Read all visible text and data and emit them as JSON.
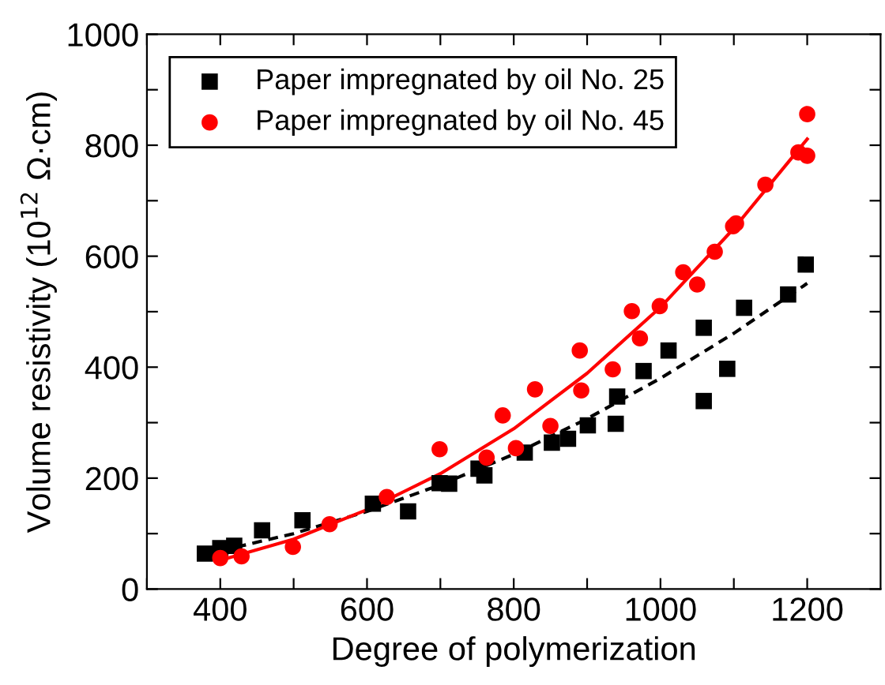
{
  "chart_data": {
    "type": "scatter",
    "xlabel": "Degree of polymerization",
    "ylabel": "Volume resistivity (10$^{12}$ Ω·cm)",
    "xlim": [
      300,
      1300
    ],
    "ylim": [
      0,
      1000
    ],
    "xticks": [
      {
        "value": 300,
        "label": null
      },
      400,
      {
        "value": 500,
        "label": null
      },
      600,
      {
        "value": 700,
        "label": null
      },
      800,
      {
        "value": 900,
        "label": null
      },
      1000,
      {
        "value": 1100,
        "label": null
      },
      1200
    ],
    "yticks": [
      0,
      {
        "value": 100,
        "label": null
      },
      200,
      {
        "value": 300,
        "label": null
      },
      400,
      {
        "value": 500,
        "label": null
      },
      600,
      {
        "value": 700,
        "label": null
      },
      800,
      {
        "value": 900,
        "label": null
      },
      1000
    ],
    "legend": "top left",
    "grid": false,
    "series": [
      {
        "name": "Paper impregnated by oil No. 25",
        "color": "#000000",
        "marker": "square",
        "x": [
          379,
          400,
          419,
          457,
          512,
          608,
          656,
          699,
          712,
          752,
          760,
          815,
          852,
          874,
          901,
          939,
          941,
          977,
          1011,
          1059,
          1059,
          1091,
          1114,
          1174,
          1198
        ],
        "values": [
          64,
          74,
          78,
          106,
          124,
          154,
          140,
          191,
          190,
          217,
          205,
          246,
          264,
          271,
          295,
          298,
          347,
          393,
          430,
          339,
          471,
          397,
          507,
          531,
          585
        ]
      },
      {
        "name": "Paper impregnated by oil No. 45",
        "color": "#ff0000",
        "marker": "circle",
        "x": [
          400,
          429,
          499,
          549,
          627,
          699,
          763,
          785,
          803,
          829,
          850,
          890,
          892,
          935,
          961,
          972,
          999,
          1031,
          1050,
          1074,
          1099,
          1103,
          1143,
          1188,
          1200,
          1200
        ],
        "values": [
          56,
          59,
          76,
          117,
          166,
          252,
          237,
          313,
          254,
          360,
          294,
          430,
          358,
          396,
          501,
          452,
          510,
          571,
          549,
          608,
          654,
          659,
          729,
          787,
          856,
          781
        ]
      },
      {
        "type": "line",
        "color": "#000000",
        "line_style": "dashed",
        "x": [
          400,
          500,
          600,
          700,
          800,
          900,
          1000,
          1100,
          1200
        ],
        "values": [
          69,
          100,
          140,
          188,
          243,
          307,
          380,
          461,
          551
        ]
      },
      {
        "type": "line",
        "color": "#ff0000",
        "line_style": "solid",
        "x": [
          400,
          500,
          600,
          700,
          800,
          900,
          1000,
          1100,
          1200
        ],
        "values": [
          52,
          90,
          143,
          208,
          289,
          389,
          508,
          650,
          811
        ]
      }
    ]
  }
}
